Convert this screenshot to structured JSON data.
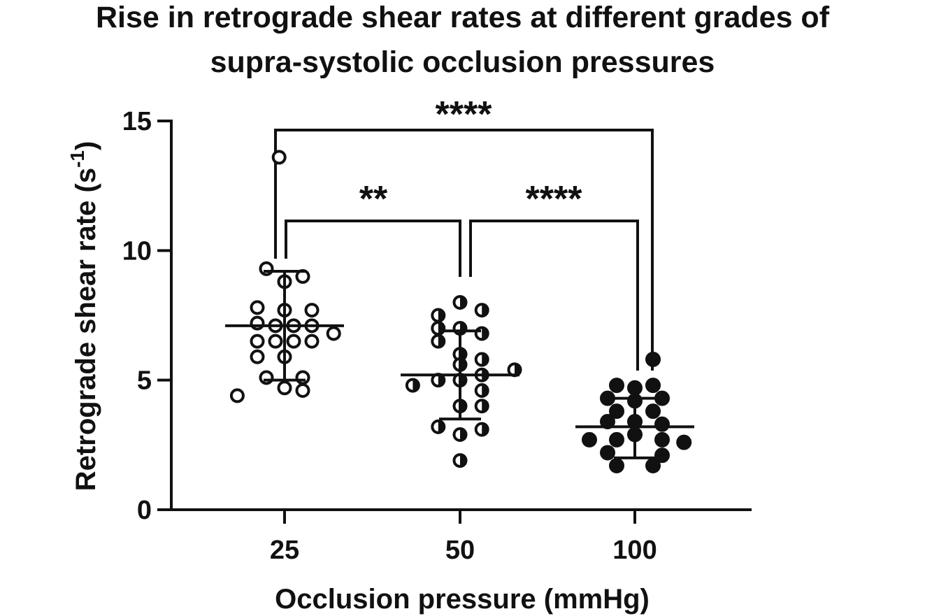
{
  "chart_data": {
    "type": "scatter",
    "title_line1": "Rise in retrograde shear rates at different grades of",
    "title_line2": "supra-systolic occlusion pressures",
    "xlabel": "Occlusion pressure (mmHg)",
    "ylabel": "Retrograde shear rate (s",
    "ylabel_sup": "-1",
    "ylabel_close": ")",
    "ylim": [
      0,
      15
    ],
    "yticks": [
      0,
      5,
      10,
      15
    ],
    "yticklabels": [
      "0",
      "5",
      "10",
      "15"
    ],
    "categories": [
      "25",
      "50",
      "100"
    ],
    "series": [
      {
        "category": "25",
        "marker": "open",
        "mean": 7.1,
        "sd_upper": 9.2,
        "sd_lower": 5.0,
        "points": [
          {
            "dx": -0.3,
            "y": 13.6
          },
          {
            "dx": -1,
            "y": 9.3
          },
          {
            "dx": 0,
            "y": 8.8
          },
          {
            "dx": 1,
            "y": 9.0
          },
          {
            "dx": -1.5,
            "y": 7.8
          },
          {
            "dx": 0,
            "y": 7.7
          },
          {
            "dx": 1.5,
            "y": 7.7
          },
          {
            "dx": -1.5,
            "y": 7.2
          },
          {
            "dx": -0.5,
            "y": 7.1
          },
          {
            "dx": 0.5,
            "y": 7.1
          },
          {
            "dx": 1.5,
            "y": 7.1
          },
          {
            "dx": -1.5,
            "y": 6.5
          },
          {
            "dx": -0.5,
            "y": 6.5
          },
          {
            "dx": 0.5,
            "y": 6.5
          },
          {
            "dx": 1.5,
            "y": 6.5
          },
          {
            "dx": 2.7,
            "y": 6.8
          },
          {
            "dx": -1.5,
            "y": 5.9
          },
          {
            "dx": 0,
            "y": 5.9
          },
          {
            "dx": -1,
            "y": 5.1
          },
          {
            "dx": 1,
            "y": 5.1
          },
          {
            "dx": -2.6,
            "y": 4.4
          },
          {
            "dx": 0,
            "y": 4.7
          },
          {
            "dx": 1,
            "y": 4.6
          }
        ]
      },
      {
        "category": "50",
        "marker": "half",
        "mean": 5.2,
        "sd_upper": 6.9,
        "sd_lower": 3.5,
        "points": [
          {
            "dx": 0,
            "y": 8.0
          },
          {
            "dx": 1.2,
            "y": 7.7
          },
          {
            "dx": -1.2,
            "y": 7.5
          },
          {
            "dx": -1.2,
            "y": 7.0
          },
          {
            "dx": 0,
            "y": 7.0
          },
          {
            "dx": -1.2,
            "y": 6.5
          },
          {
            "dx": 1.2,
            "y": 6.8
          },
          {
            "dx": 0,
            "y": 6.0
          },
          {
            "dx": 1.2,
            "y": 5.8
          },
          {
            "dx": 0,
            "y": 5.6
          },
          {
            "dx": 1.2,
            "y": 5.2
          },
          {
            "dx": 3,
            "y": 5.4
          },
          {
            "dx": -2.6,
            "y": 4.8
          },
          {
            "dx": -1.2,
            "y": 5.0
          },
          {
            "dx": 0,
            "y": 5.0
          },
          {
            "dx": 1.2,
            "y": 4.6
          },
          {
            "dx": 0,
            "y": 4.0
          },
          {
            "dx": 1.2,
            "y": 4.0
          },
          {
            "dx": -1.2,
            "y": 3.2
          },
          {
            "dx": 0,
            "y": 2.9
          },
          {
            "dx": 1.2,
            "y": 3.1
          },
          {
            "dx": 0,
            "y": 1.9
          }
        ]
      },
      {
        "category": "100",
        "marker": "filled",
        "mean": 3.2,
        "sd_upper": 4.3,
        "sd_lower": 2.0,
        "points": [
          {
            "dx": 1,
            "y": 5.8
          },
          {
            "dx": -1,
            "y": 4.8
          },
          {
            "dx": 0,
            "y": 4.7
          },
          {
            "dx": 1,
            "y": 4.8
          },
          {
            "dx": -1.5,
            "y": 4.3
          },
          {
            "dx": 0,
            "y": 4.2
          },
          {
            "dx": 1.5,
            "y": 4.3
          },
          {
            "dx": -1,
            "y": 3.8
          },
          {
            "dx": 1,
            "y": 3.8
          },
          {
            "dx": -1.5,
            "y": 3.4
          },
          {
            "dx": 0,
            "y": 3.4
          },
          {
            "dx": 1.5,
            "y": 3.3
          },
          {
            "dx": -2.5,
            "y": 2.7
          },
          {
            "dx": -1,
            "y": 2.7
          },
          {
            "dx": 0,
            "y": 2.9
          },
          {
            "dx": 1.5,
            "y": 2.7
          },
          {
            "dx": 2.7,
            "y": 2.6
          },
          {
            "dx": -1.5,
            "y": 2.2
          },
          {
            "dx": 1.5,
            "y": 2.1
          },
          {
            "dx": -1,
            "y": 1.7
          },
          {
            "dx": 1,
            "y": 1.7
          }
        ]
      }
    ],
    "comparisons": [
      {
        "from": "25",
        "to": "100",
        "label": "****"
      },
      {
        "from": "25",
        "to": "50",
        "label": "**"
      },
      {
        "from": "50",
        "to": "100",
        "label": "****"
      }
    ],
    "grid": false,
    "legend": "none"
  }
}
